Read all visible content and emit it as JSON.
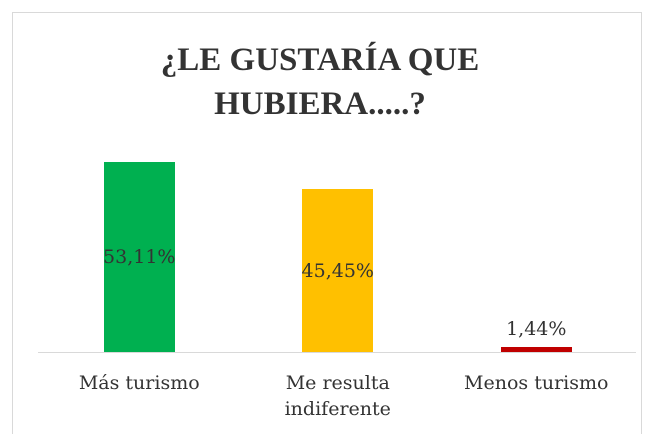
{
  "chart_data": {
    "type": "bar",
    "title": "¿LE GUSTARÍA QUE HUBIERA.....?",
    "categories": [
      "Más turismo",
      "Me resulta indiferente",
      "Menos turismo"
    ],
    "values": [
      53.11,
      45.45,
      1.44
    ],
    "value_labels": [
      "53,11%",
      "45,45%",
      "1,44%"
    ],
    "colors": [
      "#00b050",
      "#ffc000",
      "#c00000"
    ]
  }
}
